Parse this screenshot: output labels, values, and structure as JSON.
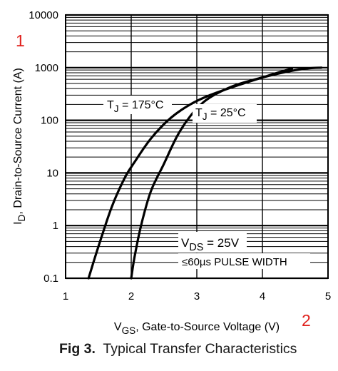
{
  "chart_data": {
    "type": "line",
    "y_scale": "log",
    "ylim": [
      0.1,
      10000
    ],
    "xlim": [
      1,
      5
    ],
    "x_ticks": [
      "1",
      "2",
      "3",
      "4",
      "5"
    ],
    "y_ticks": [
      "0.1",
      "1",
      "10",
      "100",
      "1000",
      "10000"
    ],
    "xlabel": {
      "main": "V",
      "sub": "GS",
      "rest": ", Gate-to-Source Voltage (V)"
    },
    "ylabel": {
      "main": "I",
      "sub": "D",
      "rest": ", Drain-to-Source Current (A)"
    },
    "grid": true,
    "series": [
      {
        "label": {
          "main": "T",
          "sub": "J",
          "rest": " = 175°C"
        },
        "points": [
          [
            1.35,
            0.1
          ],
          [
            1.5,
            0.4
          ],
          [
            1.7,
            2.2
          ],
          [
            1.9,
            8
          ],
          [
            2.05,
            16
          ],
          [
            2.3,
            45
          ],
          [
            2.6,
            110
          ],
          [
            2.9,
            200
          ],
          [
            3.2,
            300
          ],
          [
            3.6,
            450
          ],
          [
            4.0,
            650
          ],
          [
            4.3,
            850
          ],
          [
            4.45,
            950
          ]
        ]
      },
      {
        "label": {
          "main": "T",
          "sub": "J",
          "rest": " = 25°C"
        },
        "points": [
          [
            2.0,
            0.1
          ],
          [
            2.05,
            0.25
          ],
          [
            2.15,
            1
          ],
          [
            2.3,
            4.5
          ],
          [
            2.5,
            15
          ],
          [
            2.7,
            50
          ],
          [
            2.9,
            120
          ],
          [
            3.1,
            220
          ],
          [
            3.3,
            320
          ],
          [
            3.6,
            470
          ],
          [
            4.0,
            650
          ],
          [
            4.4,
            850
          ],
          [
            4.7,
            970
          ],
          [
            4.9,
            1000
          ]
        ]
      }
    ],
    "annotation": {
      "line1": {
        "main": "V",
        "sub": "DS",
        "rest": " = 25V"
      },
      "line2": "≤60µs PULSE WIDTH"
    }
  },
  "caption": {
    "label": "Fig 3.",
    "text": "Typical Transfer Characteristics"
  },
  "markers": {
    "one": "1",
    "two": "2",
    "color": "#e0201b"
  }
}
